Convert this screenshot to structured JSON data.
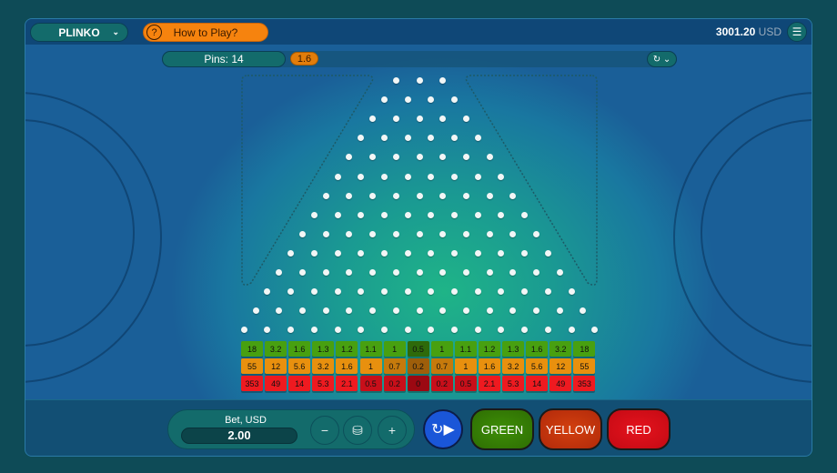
{
  "topbar": {
    "game": "PLINKO",
    "how_to_play": "How to Play?",
    "balance": "3001.20",
    "currency": "USD"
  },
  "infobar": {
    "pins": "Pins: 14",
    "last_multiplier": "1.6"
  },
  "board": {
    "rows": 14,
    "multipliers": {
      "green": [
        "18",
        "3.2",
        "1.6",
        "1.3",
        "1.2",
        "1.1",
        "1",
        "0.5",
        "1",
        "1.1",
        "1.2",
        "1.3",
        "1.6",
        "3.2",
        "18"
      ],
      "yellow": [
        "55",
        "12",
        "5.6",
        "3.2",
        "1.6",
        "1",
        "0.7",
        "0.2",
        "0.7",
        "1",
        "1.6",
        "3.2",
        "5.6",
        "12",
        "55"
      ],
      "red": [
        "353",
        "49",
        "14",
        "5.3",
        "2.1",
        "0.5",
        "0.2",
        "0",
        "0.2",
        "0.5",
        "2.1",
        "5.3",
        "14",
        "49",
        "353"
      ]
    },
    "colors": {
      "green": [
        "#48a010",
        "#3a8a0c",
        "#2e6a0a"
      ],
      "yellow": [
        "#e8900e",
        "#c67a0c",
        "#9e5e0a"
      ],
      "red": [
        "#ee1a20",
        "#c80f1a",
        "#9c0812"
      ]
    }
  },
  "bet": {
    "label": "Bet, USD",
    "value": "2.00",
    "minus": "−",
    "plus": "+"
  },
  "buttons": {
    "green": "GREEN",
    "yellow": "YELLOW",
    "red": "RED"
  }
}
